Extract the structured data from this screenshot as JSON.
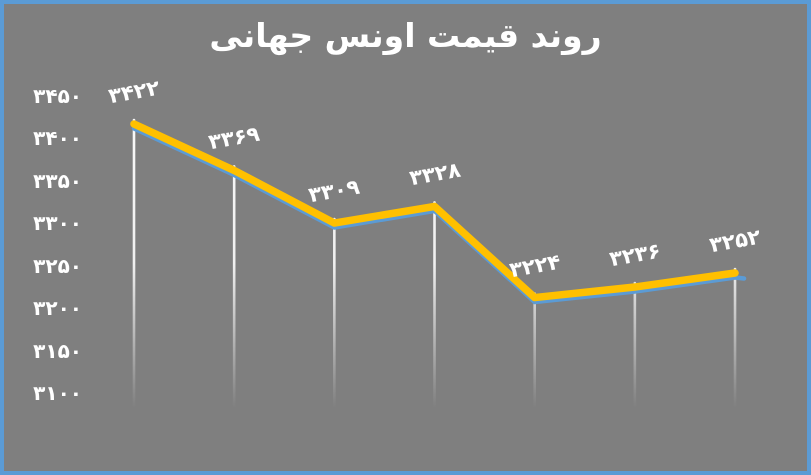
{
  "window": {
    "background_color": "#7F7F7F",
    "border_color": "#5B9BD5"
  },
  "chart_data": {
    "type": "line",
    "title": "روند قیمت اونس جهانی",
    "title_color": "#FFFFFF",
    "values": [
      3422,
      3369,
      3309,
      3328,
      3224,
      3236,
      3252
    ],
    "point_labels": [
      "۳۴۲۲",
      "۳۳۶۹",
      "۳۳۰۹",
      "۳۳۲۸",
      "۳۲۲۴",
      "۳۲۳۶",
      "۳۲۵۲"
    ],
    "y_ticks": [
      {
        "value": 3450,
        "label": "۳۴۵۰"
      },
      {
        "value": 3400,
        "label": "۳۴۰۰"
      },
      {
        "value": 3350,
        "label": "۳۳۵۰"
      },
      {
        "value": 3300,
        "label": "۳۳۰۰"
      },
      {
        "value": 3250,
        "label": "۳۲۵۰"
      },
      {
        "value": 3200,
        "label": "۳۲۰۰"
      },
      {
        "value": 3150,
        "label": "۳۱۵۰"
      },
      {
        "value": 3100,
        "label": "۳۱۰۰"
      }
    ],
    "ylim": [
      3100,
      3450
    ],
    "xlabel": "",
    "ylabel": "",
    "grid": false,
    "legend": false,
    "line_color": "#FFC000",
    "shadow_line_color": "#5B9BD5",
    "drop_line_color": "#FFFFFF",
    "label_color": "#FFFFFF",
    "tick_label_color": "#FFFFFF"
  }
}
